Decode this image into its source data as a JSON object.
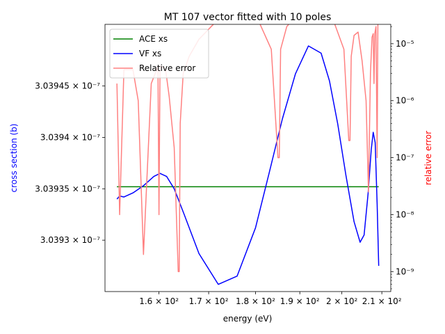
{
  "chart_data": {
    "type": "line",
    "title": "MT 107 vector fitted with 10 poles",
    "xlabel": "energy (eV)",
    "ylabel_left": "cross section (b)",
    "ylabel_right": "relative error",
    "xlim": [
      149.8,
      212.3
    ],
    "ylim_left": [
      3.03925e-07,
      3.03951e-07
    ],
    "ylim_right_log": [
      -9.35,
      -4.66
    ],
    "x_ticks": [
      {
        "value": 160,
        "label": "1.6 × 10²"
      },
      {
        "value": 170,
        "label": "1.7 × 10²"
      },
      {
        "value": 180,
        "label": "1.8 × 10²"
      },
      {
        "value": 190,
        "label": "1.9 × 10²"
      },
      {
        "value": 200,
        "label": "2 × 10²"
      },
      {
        "value": 210,
        "label": "2.1 × 10²"
      }
    ],
    "y_left_ticks": [
      {
        "value": 3.0393e-07,
        "label": "3.0393 × 10⁻⁷"
      },
      {
        "value": 3.03935e-07,
        "label": "3.03935 × 10⁻⁷"
      },
      {
        "value": 3.0394e-07,
        "label": "3.0394 × 10⁻⁷"
      },
      {
        "value": 3.03945e-07,
        "label": "3.03945 × 10⁻⁷"
      }
    ],
    "y_right_ticks": [
      {
        "exp": -9,
        "label": "10⁻⁹"
      },
      {
        "exp": -8,
        "label": "10⁻⁸"
      },
      {
        "exp": -7,
        "label": "10⁻⁷"
      },
      {
        "exp": -6,
        "label": "10⁻⁶"
      },
      {
        "exp": -5,
        "label": "10⁻⁵"
      }
    ],
    "legend_position": "top-left",
    "series": [
      {
        "name": "ACE xs",
        "color": "#008000",
        "axis": "left",
        "x": [
          152.0,
          209.2
        ],
        "y": [
          3.039352e-07,
          3.039352e-07
        ]
      },
      {
        "name": "VF xs",
        "color": "#0000ff",
        "axis": "left",
        "x": [
          152.0,
          152.5,
          153.3,
          155.0,
          157.0,
          159.0,
          160.2,
          161.5,
          163.0,
          165.0,
          168.0,
          172.0,
          176.0,
          180.0,
          183.0,
          186.0,
          189.0,
          192.0,
          195.0,
          197.0,
          199.0,
          201.0,
          203.0,
          204.5,
          205.5,
          206.5,
          207.3,
          207.8,
          208.3,
          208.8,
          209.2
        ],
        "y": [
          3.03934e-07,
          3.039343e-07,
          3.039342e-07,
          3.039346e-07,
          3.039353e-07,
          3.039362e-07,
          3.039365e-07,
          3.039362e-07,
          3.03935e-07,
          3.039325e-07,
          3.039287e-07,
          3.039257e-07,
          3.039265e-07,
          3.039312e-07,
          3.039365e-07,
          3.039418e-07,
          3.039462e-07,
          3.039489e-07,
          3.039482e-07,
          3.039455e-07,
          3.039413e-07,
          3.039363e-07,
          3.039318e-07,
          3.039298e-07,
          3.039305e-07,
          3.039345e-07,
          3.039388e-07,
          3.039405e-07,
          3.039395e-07,
          3.039335e-07,
          3.039275e-07
        ]
      },
      {
        "name": "Relative error",
        "color": "#ff8080",
        "axis": "right",
        "x": [
          152.0,
          152.5,
          153.3,
          155.0,
          156.0,
          157.0,
          158.5,
          159.8,
          160.0,
          160.2,
          160.5,
          161.3,
          162.0,
          163.0,
          163.8,
          164.0,
          164.2,
          164.8,
          166.0,
          168.0,
          171.0,
          174.0,
          176.0,
          178.0,
          181.0,
          183.5,
          185.0,
          185.3,
          185.6,
          187.0,
          189.0,
          192.0,
          195.0,
          198.0,
          200.5,
          201.7,
          202.0,
          202.3,
          203.0,
          204.0,
          205.0,
          206.0,
          206.6,
          207.1,
          207.5,
          207.8,
          208.0,
          208.2,
          208.5,
          208.8,
          209.0,
          209.2
        ],
        "y": [
          2e-06,
          1e-08,
          3.5e-06,
          3.5e-06,
          1e-06,
          2e-09,
          2e-06,
          4e-06,
          1e-08,
          4e-06,
          4e-06,
          3.5e-06,
          1.2e-06,
          1.5e-07,
          1e-09,
          1e-09,
          4e-07,
          3e-06,
          6e-06,
          1.2e-05,
          2.2e-05,
          3e-05,
          3.2e-05,
          3e-05,
          2.2e-05,
          8e-06,
          1e-07,
          1e-07,
          8e-06,
          2e-05,
          3e-05,
          3.3e-05,
          3.3e-05,
          2.5e-05,
          8e-06,
          2e-07,
          2e-07,
          6e-06,
          1.4e-05,
          1.6e-05,
          5e-06,
          1e-06,
          2.5e-08,
          3e-06,
          1.3e-05,
          1.5e-05,
          2e-06,
          1.5e-05,
          2e-05,
          1e-07,
          3e-05,
          3e-05
        ]
      }
    ]
  }
}
